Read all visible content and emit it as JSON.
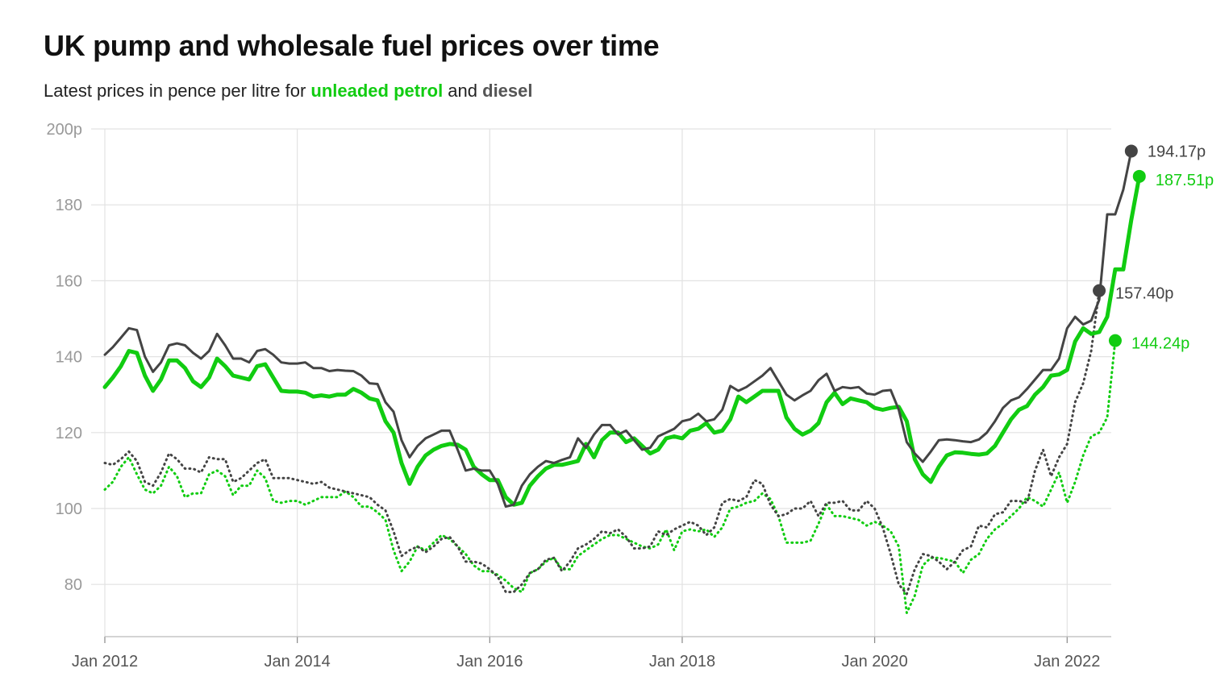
{
  "title": "UK pump and wholesale fuel prices over time",
  "subtitle": {
    "prefix": "Latest prices in pence per litre for ",
    "petrol": "unleaded petrol",
    "middle": " and ",
    "diesel": "diesel"
  },
  "colors": {
    "petrol": "#11cc11",
    "diesel": "#444444",
    "grid": "#e2e2e2",
    "axis_text": "#999999"
  },
  "chart_data": {
    "type": "line",
    "title": "UK pump and wholesale fuel prices over time",
    "ylim": [
      68,
      200
    ],
    "xlim": [
      "2012-01",
      "2022-06"
    ],
    "y_ticks": [
      {
        "value": 200,
        "label": "200p"
      },
      {
        "value": 180,
        "label": "180"
      },
      {
        "value": 160,
        "label": "160"
      },
      {
        "value": 140,
        "label": "140"
      },
      {
        "value": 120,
        "label": "120"
      },
      {
        "value": 100,
        "label": "100"
      },
      {
        "value": 80,
        "label": "80"
      }
    ],
    "x_ticks": [
      {
        "value": "2012-01",
        "label": "Jan 2012"
      },
      {
        "value": "2014-01",
        "label": "Jan 2014"
      },
      {
        "value": "2016-01",
        "label": "Jan 2016"
      },
      {
        "value": "2018-01",
        "label": "Jan 2018"
      },
      {
        "value": "2020-01",
        "label": "Jan 2020"
      },
      {
        "value": "2022-01",
        "label": "Jan 2022"
      }
    ],
    "grid": true,
    "start": "2012-01",
    "series": [
      {
        "key": "petrol_pump",
        "color": "#11cc11",
        "style": "solid",
        "width": 5,
        "end_label": "187.51p",
        "values": [
          132,
          134.5,
          137.5,
          141.5,
          141,
          135,
          131,
          134,
          139,
          139,
          137,
          133.5,
          132,
          134.5,
          139.5,
          137.5,
          135,
          134.5,
          134,
          137.5,
          138,
          134.5,
          131,
          130.8,
          130.8,
          130.5,
          129.5,
          129.8,
          129.5,
          130,
          130,
          131.5,
          130.5,
          129,
          128.5,
          123,
          120,
          112,
          106.5,
          111,
          114,
          115.5,
          116.5,
          117,
          116.8,
          115.5,
          111,
          109,
          107.5,
          107.5,
          103,
          101,
          101.5,
          106,
          108.5,
          110.5,
          111.5,
          111.5,
          112,
          112.5,
          117,
          113.5,
          118,
          120,
          120,
          117.5,
          118.5,
          116.5,
          114.5,
          115.5,
          118.5,
          119,
          118.5,
          120.5,
          121,
          122.5,
          120,
          120.5,
          123.5,
          129.5,
          128,
          129.5,
          131,
          131,
          131,
          124,
          121,
          119.5,
          120.5,
          122.5,
          128,
          130.5,
          127.5,
          129,
          128.5,
          128,
          126.5,
          126,
          126.5,
          126.8,
          123,
          113,
          109,
          107,
          111,
          114,
          114.8,
          114.7,
          114.4,
          114.2,
          114.5,
          116.5,
          120,
          123.5,
          126,
          127,
          130,
          132,
          135,
          135.3,
          136.5,
          144,
          147.5,
          146,
          146.5,
          150.5,
          163,
          163,
          176,
          187.51
        ]
      },
      {
        "key": "diesel_pump",
        "color": "#444444",
        "style": "solid",
        "width": 3,
        "end_label": "194.17p",
        "values": [
          140.5,
          142.5,
          145,
          147.5,
          147,
          140,
          136,
          138.5,
          143,
          143.5,
          143,
          141,
          139.5,
          141.5,
          146,
          143,
          139.5,
          139.5,
          138.5,
          141.5,
          142,
          140.5,
          138.5,
          138.2,
          138.2,
          138.5,
          137,
          137,
          136.2,
          136.5,
          136.3,
          136.2,
          135,
          133,
          132.8,
          128,
          125.5,
          118,
          113.5,
          116.5,
          118.5,
          119.5,
          120.5,
          120.5,
          115.5,
          110,
          110.5,
          110,
          110,
          106.5,
          100.5,
          101,
          106,
          109,
          111,
          112.5,
          112,
          112.8,
          113.5,
          118.5,
          116,
          119.5,
          122,
          122,
          119.5,
          120.5,
          118,
          115.5,
          116,
          119,
          120,
          121,
          123,
          123.5,
          125,
          123,
          123.5,
          126,
          132.3,
          131,
          132,
          133.5,
          135,
          137,
          133.5,
          130,
          128.5,
          129.8,
          131,
          133.8,
          135.5,
          131,
          132,
          131.7,
          132,
          130.3,
          130,
          131,
          131.2,
          126,
          117.5,
          114.5,
          112.3,
          115,
          118,
          118.2,
          118,
          117.7,
          117.5,
          118.2,
          120,
          123,
          126.5,
          128.5,
          129.3,
          131.5,
          134,
          136.5,
          136.5,
          139.5,
          147.5,
          150.5,
          148.5,
          149.5,
          155,
          177.5,
          177.5,
          184,
          194.17
        ]
      },
      {
        "key": "petrol_wholesale",
        "color": "#11cc11",
        "style": "dotted",
        "width": 3,
        "end_label": "144.24p",
        "values": [
          105,
          107,
          111,
          113.5,
          109,
          105,
          104,
          106,
          111,
          108.5,
          103,
          104,
          104,
          109,
          110,
          108.5,
          103.5,
          106,
          106,
          110,
          108,
          102,
          101.5,
          102,
          102,
          101,
          102,
          103,
          103,
          103,
          104.5,
          103,
          100.5,
          100.5,
          99,
          97,
          89,
          83.5,
          86,
          90,
          89,
          91,
          93,
          92,
          90,
          88,
          85,
          83.5,
          83.5,
          82.5,
          81,
          79,
          78,
          83,
          84,
          86,
          87,
          84,
          84,
          87.5,
          89,
          90.5,
          92,
          93,
          93,
          92,
          91,
          90,
          89.5,
          90.5,
          94.5,
          89,
          94,
          94.5,
          94,
          94.5,
          92.5,
          95,
          100,
          100.5,
          101.5,
          102,
          104,
          102.5,
          98,
          91,
          91,
          91,
          91.5,
          96,
          101,
          98,
          98,
          97.5,
          97,
          95.5,
          96.5,
          95.5,
          94,
          90,
          72.5,
          77,
          85,
          87,
          87,
          86.5,
          86,
          83,
          86.5,
          88,
          92,
          94.5,
          96,
          98,
          100,
          103,
          102,
          100.5,
          105,
          109.5,
          101.5,
          107,
          114,
          119,
          120,
          124,
          144.24
        ]
      },
      {
        "key": "diesel_wholesale",
        "color": "#444444",
        "style": "dotted",
        "width": 3,
        "end_label": "157.40p",
        "values": [
          112,
          111.5,
          113,
          115,
          112.5,
          107,
          106,
          109.5,
          114.5,
          113,
          110.5,
          110.5,
          109.5,
          113.5,
          113,
          113,
          107,
          108,
          110,
          112,
          113,
          108,
          108,
          108,
          107.5,
          107,
          106.5,
          107,
          105.5,
          105,
          104.5,
          104,
          103.5,
          103,
          101,
          99.5,
          94,
          87.5,
          89,
          90,
          88.5,
          90,
          92,
          92.5,
          90,
          86,
          86,
          85.5,
          84,
          82,
          78,
          78,
          80,
          83,
          84,
          86.5,
          87,
          83.5,
          86,
          89.5,
          90.5,
          92,
          94,
          93.5,
          94.5,
          92.5,
          89.5,
          89.5,
          90,
          94,
          93,
          94.5,
          95.5,
          96.5,
          95.5,
          93,
          95,
          101.5,
          102.5,
          102,
          103,
          107.5,
          106.5,
          101,
          98,
          98.5,
          100,
          100,
          102,
          98,
          101.5,
          101.5,
          102,
          99.5,
          99.5,
          102,
          100,
          95,
          88,
          80,
          77.5,
          84,
          88,
          87.5,
          86,
          84,
          86,
          89,
          90,
          95.5,
          95,
          98.5,
          99,
          102,
          102,
          101.5,
          110,
          115.5,
          108.5,
          113.5,
          117,
          128,
          133,
          141.5,
          157.4
        ]
      }
    ]
  }
}
